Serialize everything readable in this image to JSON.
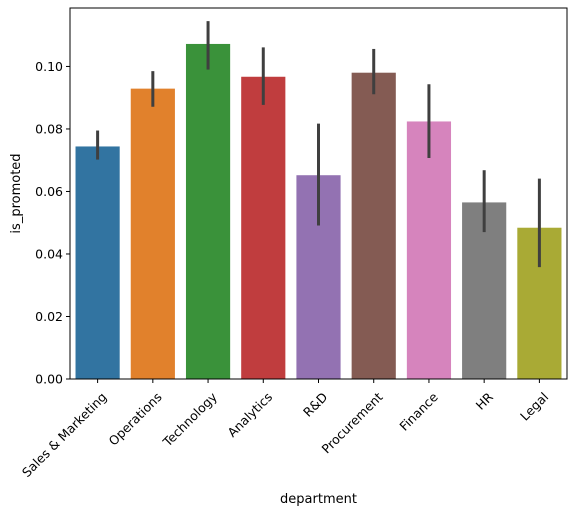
{
  "chart_data": {
    "type": "bar",
    "title": "",
    "xlabel": "department",
    "ylabel": "is_promoted",
    "ylim": [
      0,
      0.1187
    ],
    "yticks": [
      0.0,
      0.02,
      0.04,
      0.06,
      0.08,
      0.1
    ],
    "ytick_labels": [
      "0.00",
      "0.02",
      "0.04",
      "0.06",
      "0.08",
      "0.10"
    ],
    "grid": false,
    "legend": "none",
    "categories": [
      "Sales & Marketing",
      "Operations",
      "Technology",
      "Analytics",
      "R&D",
      "Procurement",
      "Finance",
      "HR",
      "Legal"
    ],
    "values": [
      0.0744,
      0.0929,
      0.1072,
      0.0967,
      0.0652,
      0.098,
      0.0824,
      0.0565,
      0.0484
    ],
    "ci_low": [
      0.0702,
      0.0871,
      0.099,
      0.0877,
      0.0491,
      0.0911,
      0.0707,
      0.047,
      0.0358
    ],
    "ci_high": [
      0.0795,
      0.0985,
      0.1145,
      0.1061,
      0.0817,
      0.1056,
      0.0943,
      0.0668,
      0.0641
    ],
    "colors": [
      "#3274a1",
      "#e1812c",
      "#3a923a",
      "#c03d3e",
      "#9372b2",
      "#845b53",
      "#d684bd",
      "#7f7f7f",
      "#a9aa35"
    ],
    "error_bar_color": "#3f3f3f"
  }
}
